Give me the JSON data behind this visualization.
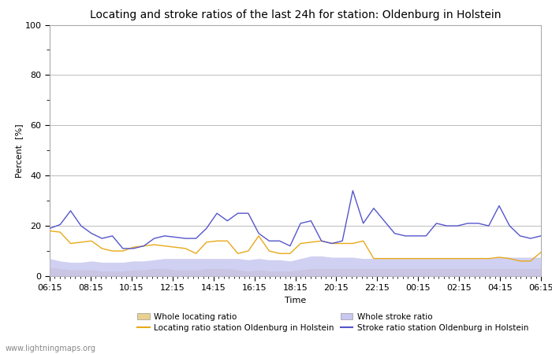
{
  "title": "Locating and stroke ratios of the last 24h for station: Oldenburg in Holstein",
  "xlabel": "Time",
  "ylabel": "Percent  [%]",
  "ylim": [
    0,
    100
  ],
  "yticks": [
    0,
    20,
    40,
    60,
    80,
    100
  ],
  "yticks_minor": [
    10,
    30,
    50,
    70,
    90
  ],
  "xtick_labels": [
    "06:15",
    "08:15",
    "10:15",
    "12:15",
    "14:15",
    "16:15",
    "18:15",
    "20:15",
    "22:15",
    "00:15",
    "02:15",
    "04:15",
    "06:15"
  ],
  "watermark": "www.lightningmaps.org",
  "locating_ratio_station": [
    18.0,
    17.5,
    13.0,
    13.5,
    14.0,
    11.0,
    10.0,
    10.0,
    11.5,
    12.0,
    12.5,
    12.0,
    11.5,
    11.0,
    9.0,
    13.5,
    14.0,
    14.0,
    9.0,
    10.0,
    16.0,
    10.0,
    9.0,
    9.0,
    13.0,
    13.5,
    14.0,
    13.0,
    13.0,
    13.0,
    14.0,
    7.0,
    7.0,
    7.0,
    7.0,
    7.0,
    7.0,
    7.0,
    7.0,
    7.0,
    7.0,
    7.0,
    7.0,
    7.5,
    7.0,
    6.0,
    6.0,
    9.5
  ],
  "stroke_ratio_station": [
    19.0,
    20.5,
    26.0,
    20.0,
    17.0,
    15.0,
    16.0,
    11.0,
    11.0,
    12.0,
    15.0,
    16.0,
    15.5,
    15.0,
    15.0,
    19.0,
    25.0,
    22.0,
    25.0,
    25.0,
    17.0,
    14.0,
    14.0,
    12.0,
    21.0,
    22.0,
    14.0,
    13.0,
    14.0,
    34.0,
    21.0,
    27.0,
    22.0,
    17.0,
    16.0,
    16.0,
    16.0,
    21.0,
    20.0,
    20.0,
    21.0,
    21.0,
    20.0,
    28.0,
    20.0,
    16.0,
    15.0,
    16.0
  ],
  "whole_locating_ratio": [
    3.5,
    3.0,
    2.5,
    2.5,
    2.5,
    2.0,
    2.0,
    2.0,
    2.5,
    2.5,
    3.0,
    3.0,
    2.5,
    2.5,
    2.5,
    3.0,
    3.0,
    3.0,
    2.5,
    2.0,
    2.5,
    2.0,
    2.0,
    2.0,
    2.5,
    3.0,
    3.0,
    3.0,
    3.0,
    3.0,
    3.0,
    3.0,
    3.0,
    3.0,
    3.0,
    3.0,
    3.0,
    3.0,
    3.0,
    3.0,
    3.0,
    3.0,
    3.0,
    3.0,
    3.0,
    3.0,
    3.0,
    3.0
  ],
  "whole_stroke_ratio": [
    7.0,
    6.0,
    5.5,
    5.5,
    6.0,
    5.5,
    5.5,
    5.5,
    6.0,
    6.0,
    6.5,
    7.0,
    7.0,
    7.0,
    7.0,
    7.0,
    7.0,
    7.0,
    7.0,
    6.5,
    7.0,
    6.5,
    6.5,
    6.0,
    7.0,
    8.0,
    8.0,
    7.5,
    7.5,
    7.5,
    7.0,
    7.0,
    7.0,
    7.0,
    7.0,
    7.0,
    7.0,
    7.0,
    7.0,
    7.0,
    7.0,
    7.0,
    7.0,
    7.5,
    7.5,
    7.5,
    7.5,
    7.5
  ],
  "color_locating_station": "#e8a918",
  "color_stroke_station": "#5555cc",
  "color_locating_fill": "#e8d090",
  "color_stroke_fill": "#c8c8f0",
  "color_locating_area": "#d4b896",
  "background_plot": "#ffffff",
  "grid_color": "#bbbbbb",
  "title_fontsize": 10,
  "axis_label_fontsize": 8,
  "tick_fontsize": 8
}
